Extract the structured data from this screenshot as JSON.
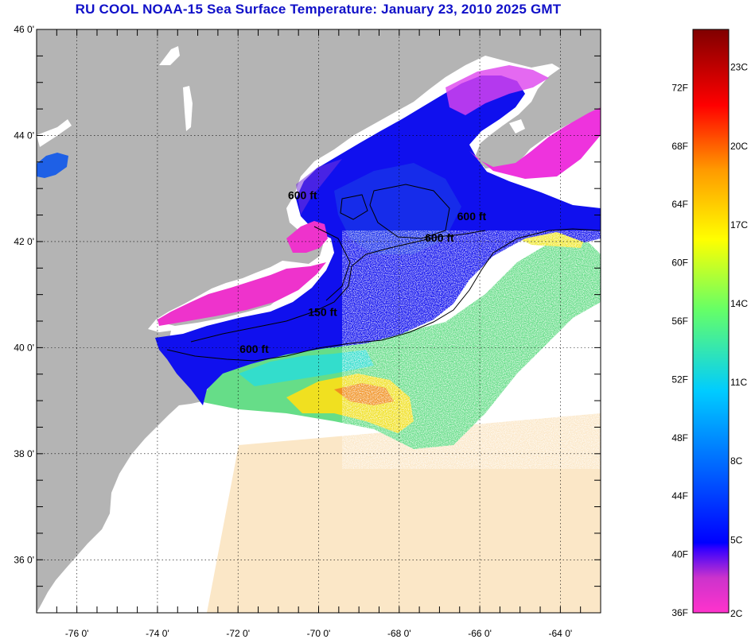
{
  "title": "RU COOL  NOAA-15  Sea Surface Temperature:  January 23, 2010 2025 GMT",
  "map": {
    "lon_range": [
      -77,
      -63
    ],
    "lat_range": [
      35,
      46
    ],
    "lat_ticks": [
      {
        "value": 46,
        "label": "46 0'"
      },
      {
        "value": 44,
        "label": "44 0'"
      },
      {
        "value": 42,
        "label": "42 0'"
      },
      {
        "value": 40,
        "label": "40 0'"
      },
      {
        "value": 38,
        "label": "38 0'"
      },
      {
        "value": 36,
        "label": "36 0'"
      }
    ],
    "lon_ticks": [
      {
        "value": -76,
        "label": "-76 0'"
      },
      {
        "value": -74,
        "label": "-74 0'"
      },
      {
        "value": -72,
        "label": "-72 0'"
      },
      {
        "value": -70,
        "label": "-70 0'"
      },
      {
        "value": -68,
        "label": "-68 0'"
      },
      {
        "value": -66,
        "label": "-66 0'"
      },
      {
        "value": -64,
        "label": "-64 0'"
      }
    ],
    "contour_labels": [
      {
        "text": "600 ft",
        "lon": -70.4,
        "lat": 42.8
      },
      {
        "text": "600 ft",
        "lon": -66.2,
        "lat": 42.4
      },
      {
        "text": "600 ft",
        "lon": -67.0,
        "lat": 42.0
      },
      {
        "text": "150 ft",
        "lon": -69.9,
        "lat": 40.6
      },
      {
        "text": "600 ft",
        "lon": -71.6,
        "lat": 39.9
      }
    ],
    "colors": {
      "land": "#b4b4b4",
      "no_data": "#ffffff"
    }
  },
  "colorbar": {
    "f_ticks": [
      {
        "value": 36,
        "label": "36F"
      },
      {
        "value": 40,
        "label": "40F"
      },
      {
        "value": 44,
        "label": "44F"
      },
      {
        "value": 48,
        "label": "48F"
      },
      {
        "value": 52,
        "label": "52F"
      },
      {
        "value": 56,
        "label": "56F"
      },
      {
        "value": 60,
        "label": "60F"
      },
      {
        "value": 64,
        "label": "64F"
      },
      {
        "value": 68,
        "label": "68F"
      },
      {
        "value": 72,
        "label": "72F"
      }
    ],
    "c_ticks": [
      {
        "value": 2,
        "label": "2C"
      },
      {
        "value": 5,
        "label": "5C"
      },
      {
        "value": 8,
        "label": "8C"
      },
      {
        "value": 11,
        "label": "11C"
      },
      {
        "value": 14,
        "label": "14C"
      },
      {
        "value": 17,
        "label": "17C"
      },
      {
        "value": 20,
        "label": "20C"
      },
      {
        "value": 23,
        "label": "23C"
      }
    ],
    "range_f": [
      36,
      76
    ],
    "colors": [
      "#ff33cc",
      "#9933cc",
      "#0000ff",
      "#0066ff",
      "#00ccff",
      "#33ff99",
      "#ffff00",
      "#ff9900",
      "#ff0000",
      "#800000"
    ]
  }
}
